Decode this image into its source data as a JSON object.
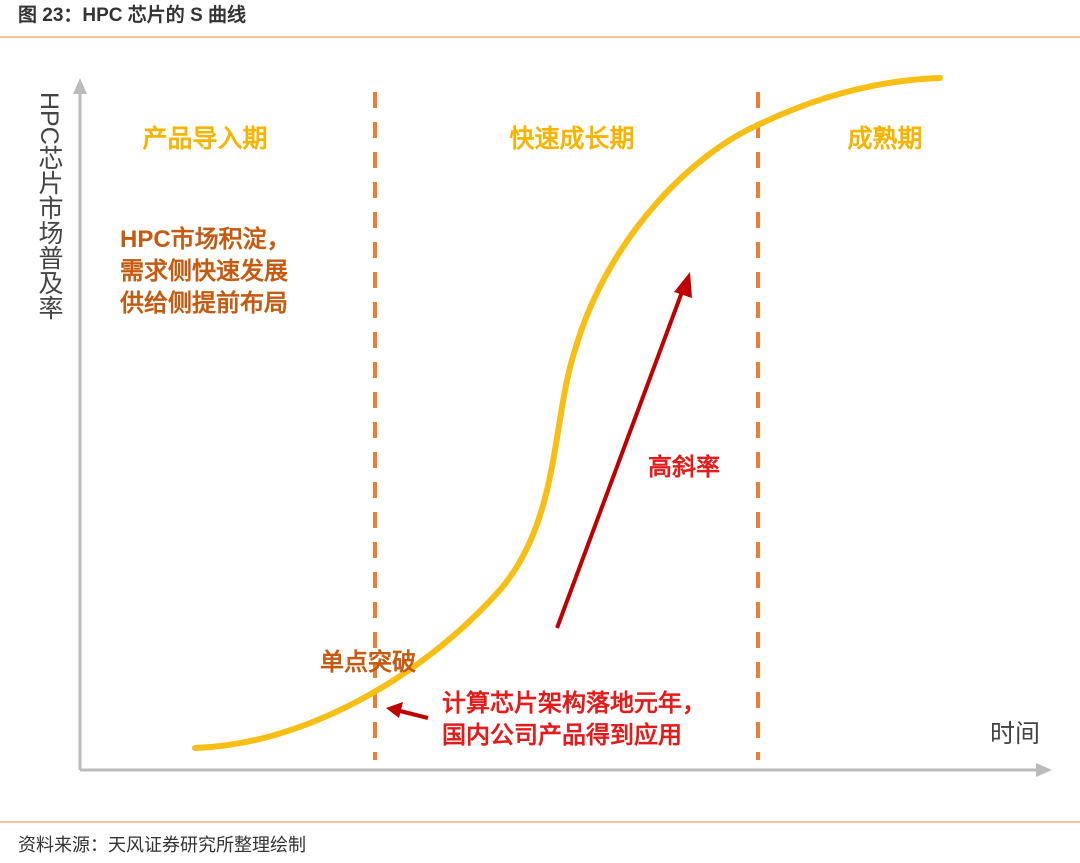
{
  "header": {
    "title": "图 23：HPC 芯片的 S 曲线"
  },
  "axes": {
    "y_label": "HPC芯片市场普及率",
    "x_label": "时间"
  },
  "phases": [
    {
      "label": "产品导入期"
    },
    {
      "label": "快速成长期"
    },
    {
      "label": "成熟期"
    }
  ],
  "intro_note": {
    "lines": [
      "HPC市场积淀，",
      "需求侧快速发展",
      "供给侧提前布局"
    ]
  },
  "slope_label": "高斜率",
  "breakthrough": {
    "label": "单点突破",
    "lines": [
      "计算芯片架构落地元年，",
      "国内公司产品得到应用"
    ]
  },
  "source": "资料来源：天风证券研究所整理绘制"
}
